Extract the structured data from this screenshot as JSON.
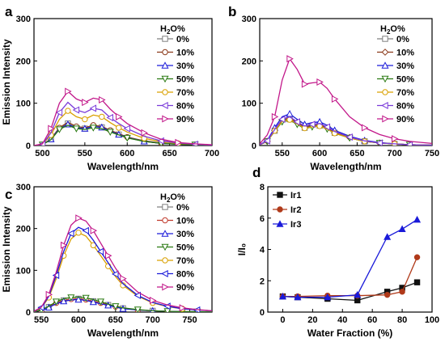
{
  "chart_data": [
    {
      "panel": "a",
      "type": "line",
      "xlabel": "Wavelength/nm",
      "ylabel": "Emission Intensity",
      "xlim": [
        490,
        700
      ],
      "ylim": [
        0,
        300
      ],
      "xticks": [
        500,
        550,
        600,
        650,
        700
      ],
      "yticks": [
        0,
        100,
        200,
        300
      ],
      "legend_title": "H₂O%",
      "legend_placement": "top-right",
      "x": [
        490,
        500,
        510,
        520,
        530,
        540,
        550,
        560,
        570,
        580,
        590,
        600,
        620,
        640,
        660,
        680,
        700
      ],
      "series": [
        {
          "name": "0%",
          "color": "#808080",
          "marker": "square-open",
          "values": [
            0,
            2,
            15,
            40,
            52,
            42,
            40,
            45,
            43,
            34,
            26,
            19,
            10,
            5,
            3,
            2,
            1
          ]
        },
        {
          "name": "10%",
          "color": "#8b3a1a",
          "marker": "circle-open",
          "values": [
            0,
            2,
            16,
            42,
            55,
            45,
            42,
            48,
            45,
            36,
            28,
            20,
            11,
            6,
            3,
            2,
            1
          ]
        },
        {
          "name": "30%",
          "color": "#1a1ad9",
          "marker": "triangle-up-open",
          "values": [
            0,
            2,
            15,
            40,
            50,
            42,
            40,
            45,
            43,
            34,
            26,
            19,
            10,
            5,
            3,
            2,
            1
          ]
        },
        {
          "name": "50%",
          "color": "#2a7a12",
          "marker": "triangle-down-open",
          "values": [
            0,
            2,
            14,
            38,
            48,
            40,
            38,
            42,
            40,
            32,
            25,
            18,
            10,
            5,
            3,
            2,
            1
          ]
        },
        {
          "name": "70%",
          "color": "#d9a000",
          "marker": "circle-open",
          "values": [
            0,
            3,
            25,
            62,
            82,
            68,
            62,
            72,
            68,
            54,
            42,
            32,
            17,
            9,
            5,
            3,
            1
          ]
        },
        {
          "name": "80%",
          "color": "#7a3ad9",
          "marker": "triangle-left-open",
          "values": [
            0,
            3,
            30,
            78,
            102,
            84,
            78,
            88,
            84,
            66,
            52,
            40,
            22,
            11,
            6,
            3,
            1
          ]
        },
        {
          "name": "90%",
          "color": "#c2188a",
          "marker": "triangle-right-open",
          "values": [
            0,
            4,
            40,
            100,
            128,
            110,
            102,
            112,
            108,
            86,
            68,
            52,
            30,
            15,
            7,
            4,
            2
          ]
        }
      ]
    },
    {
      "panel": "b",
      "type": "line",
      "xlabel": "Wavelength/nm",
      "ylabel": "",
      "xlim": [
        520,
        750
      ],
      "ylim": [
        0,
        300
      ],
      "xticks": [
        550,
        600,
        650,
        700,
        750
      ],
      "yticks": [
        0,
        100,
        200,
        300
      ],
      "legend_title": "H₂O%",
      "legend_placement": "top-right",
      "x": [
        520,
        530,
        540,
        550,
        560,
        570,
        580,
        590,
        600,
        610,
        620,
        640,
        660,
        680,
        700,
        720,
        750
      ],
      "series": [
        {
          "name": "0%",
          "color": "#808080",
          "marker": "square-open",
          "values": [
            2,
            10,
            35,
            58,
            62,
            52,
            42,
            45,
            47,
            40,
            30,
            18,
            10,
            6,
            4,
            2,
            1
          ]
        },
        {
          "name": "10%",
          "color": "#8b3a1a",
          "marker": "diamond-open",
          "values": [
            2,
            10,
            36,
            60,
            65,
            54,
            44,
            47,
            49,
            42,
            32,
            19,
            11,
            6,
            4,
            2,
            1
          ]
        },
        {
          "name": "30%",
          "color": "#1a1ad9",
          "marker": "triangle-up-open",
          "values": [
            2,
            12,
            42,
            68,
            75,
            62,
            50,
            54,
            56,
            48,
            36,
            22,
            12,
            7,
            4,
            2,
            1
          ]
        },
        {
          "name": "50%",
          "color": "#2a7a12",
          "marker": "triangle-down-open",
          "values": [
            2,
            10,
            34,
            56,
            60,
            50,
            40,
            44,
            46,
            39,
            29,
            18,
            10,
            6,
            4,
            2,
            1
          ]
        },
        {
          "name": "70%",
          "color": "#d9a000",
          "marker": "circle-open",
          "values": [
            2,
            10,
            35,
            57,
            61,
            51,
            41,
            44,
            46,
            39,
            29,
            18,
            10,
            6,
            4,
            2,
            1
          ]
        },
        {
          "name": "80%",
          "color": "#7a3ad9",
          "marker": "triangle-left-open",
          "values": [
            2,
            11,
            38,
            62,
            68,
            56,
            46,
            50,
            52,
            44,
            33,
            20,
            11,
            6,
            4,
            2,
            1
          ]
        },
        {
          "name": "90%",
          "color": "#c2188a",
          "marker": "triangle-right-open",
          "values": [
            4,
            25,
            68,
            155,
            205,
            180,
            145,
            148,
            150,
            135,
            110,
            68,
            42,
            26,
            16,
            10,
            5
          ]
        }
      ]
    },
    {
      "panel": "c",
      "type": "line",
      "xlabel": "Wavelength/nm",
      "ylabel": "Emission Intensity",
      "xlim": [
        540,
        780
      ],
      "ylim": [
        0,
        300
      ],
      "xticks": [
        550,
        600,
        650,
        700,
        750
      ],
      "yticks": [
        0,
        100,
        200,
        300
      ],
      "legend_title": "H₂O%",
      "legend_placement": "top-right",
      "x": [
        540,
        550,
        560,
        570,
        580,
        590,
        600,
        610,
        620,
        630,
        640,
        650,
        660,
        680,
        700,
        720,
        740,
        760,
        780
      ],
      "series": [
        {
          "name": "0%",
          "color": "#808080",
          "marker": "square-open",
          "values": [
            1,
            4,
            12,
            22,
            28,
            31,
            32,
            30,
            26,
            22,
            17,
            13,
            9,
            5,
            3,
            2,
            1,
            1,
            0
          ]
        },
        {
          "name": "10%",
          "color": "#c0392b",
          "marker": "circle-open",
          "values": [
            1,
            4,
            12,
            22,
            28,
            31,
            32,
            30,
            26,
            22,
            17,
            13,
            9,
            5,
            3,
            2,
            1,
            1,
            0
          ]
        },
        {
          "name": "30%",
          "color": "#1a1ad9",
          "marker": "triangle-up-open",
          "values": [
            1,
            4,
            11,
            20,
            26,
            29,
            30,
            28,
            24,
            20,
            16,
            12,
            8,
            5,
            3,
            2,
            1,
            1,
            0
          ]
        },
        {
          "name": "50%",
          "color": "#2a7a12",
          "marker": "triangle-down-open",
          "values": [
            1,
            5,
            14,
            25,
            32,
            35,
            36,
            34,
            30,
            25,
            19,
            14,
            10,
            6,
            3,
            2,
            1,
            1,
            0
          ]
        },
        {
          "name": "70%",
          "color": "#d9a000",
          "marker": "circle-open",
          "values": [
            2,
            10,
            35,
            80,
            135,
            175,
            190,
            182,
            160,
            135,
            110,
            85,
            64,
            38,
            22,
            13,
            8,
            5,
            3
          ]
        },
        {
          "name": "80%",
          "color": "#1a1ad9",
          "marker": "triangle-left-open",
          "values": [
            2,
            11,
            38,
            88,
            145,
            188,
            203,
            195,
            172,
            145,
            118,
            91,
            68,
            40,
            23,
            14,
            8,
            5,
            3
          ]
        },
        {
          "name": "90%",
          "color": "#c2188a",
          "marker": "triangle-right-open",
          "values": [
            2,
            12,
            42,
            96,
            160,
            208,
            225,
            218,
            195,
            165,
            135,
            105,
            80,
            48,
            28,
            17,
            10,
            6,
            3
          ]
        }
      ]
    },
    {
      "panel": "d",
      "type": "line",
      "xlabel": "Water Fraction (%)",
      "ylabel": "I/I₀",
      "xlim": [
        -10,
        100
      ],
      "ylim": [
        0,
        8
      ],
      "xticks": [
        0,
        20,
        40,
        60,
        80,
        100
      ],
      "yticks": [
        0,
        2,
        4,
        6,
        8
      ],
      "legend_placement": "top-left",
      "x": [
        0,
        10,
        30,
        50,
        70,
        80,
        90
      ],
      "series": [
        {
          "name": "Ir1",
          "color": "#111111",
          "marker": "square-filled",
          "values": [
            1.0,
            0.95,
            0.85,
            0.75,
            1.3,
            1.55,
            1.9
          ]
        },
        {
          "name": "Ir2",
          "color": "#b03a1a",
          "marker": "circle-filled",
          "values": [
            1.0,
            1.0,
            1.05,
            1.05,
            1.1,
            1.3,
            3.5
          ]
        },
        {
          "name": "Ir3",
          "color": "#1a1ad9",
          "marker": "triangle-filled",
          "values": [
            1.0,
            0.95,
            0.95,
            1.1,
            4.8,
            5.3,
            5.9
          ]
        }
      ]
    }
  ]
}
